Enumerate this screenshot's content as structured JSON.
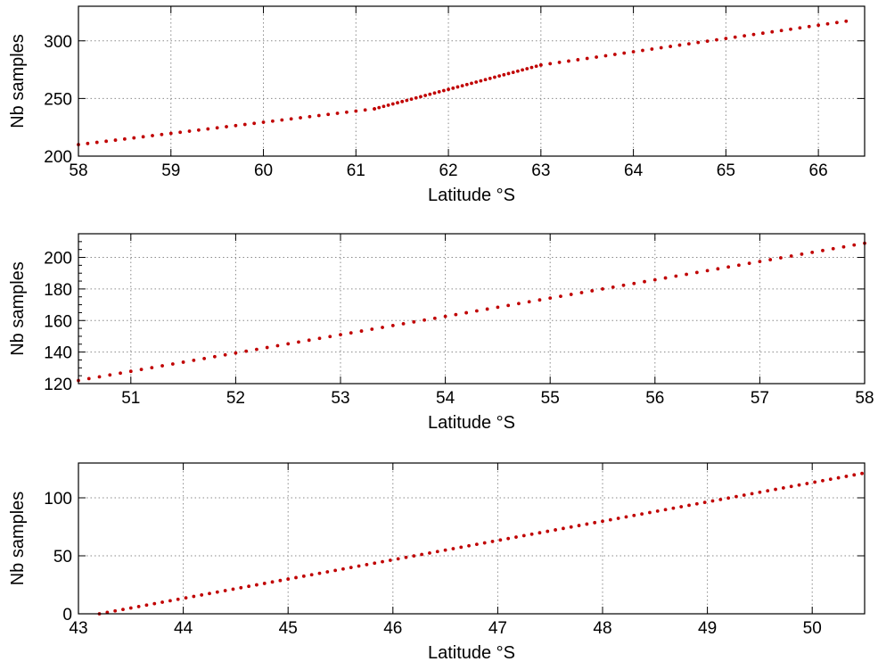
{
  "chart_data": [
    {
      "type": "scatter",
      "title": "",
      "xlabel": "Latitude °S",
      "ylabel": "Nb samples",
      "xlim": [
        58,
        66.5
      ],
      "ylim": [
        200,
        330
      ],
      "xticks": [
        "58",
        "59",
        "60",
        "61",
        "62",
        "63",
        "64",
        "65",
        "66"
      ],
      "yticks": [
        "200",
        "250",
        "300"
      ],
      "grid": true,
      "marker_color": "#c00000",
      "series_segments": [
        {
          "x_start": 58.0,
          "x_end": 61.2,
          "y_start": 210,
          "y_end": 241,
          "step": 0.1
        },
        {
          "x_start": 61.2,
          "x_end": 63.0,
          "y_start": 241,
          "y_end": 279,
          "step": 0.05
        },
        {
          "x_start": 63.0,
          "x_end": 66.3,
          "y_start": 279,
          "y_end": 317,
          "step": 0.1
        }
      ]
    },
    {
      "type": "scatter",
      "title": "",
      "xlabel": "Latitude °S",
      "ylabel": "Nb samples",
      "xlim": [
        50.5,
        58
      ],
      "ylim": [
        120,
        215
      ],
      "xticks": [
        "51",
        "52",
        "53",
        "54",
        "55",
        "56",
        "57",
        "58"
      ],
      "yticks": [
        "120",
        "140",
        "160",
        "180",
        "200"
      ],
      "grid": true,
      "marker_color": "#c00000",
      "series_segments": [
        {
          "x_start": 50.5,
          "x_end": 58.0,
          "y_start": 122,
          "y_end": 209,
          "step": 0.1
        }
      ]
    },
    {
      "type": "scatter",
      "title": "",
      "xlabel": "Latitude °S",
      "ylabel": "Nb samples",
      "xlim": [
        43,
        50.5
      ],
      "ylim": [
        0,
        130
      ],
      "xticks": [
        "43",
        "44",
        "45",
        "46",
        "47",
        "48",
        "49",
        "50"
      ],
      "yticks": [
        "0",
        "50",
        "100"
      ],
      "grid": true,
      "marker_color": "#c00000",
      "series_segments": [
        {
          "x_start": 43.2,
          "x_end": 50.5,
          "y_start": 0,
          "y_end": 121,
          "step": 0.075
        }
      ]
    }
  ]
}
